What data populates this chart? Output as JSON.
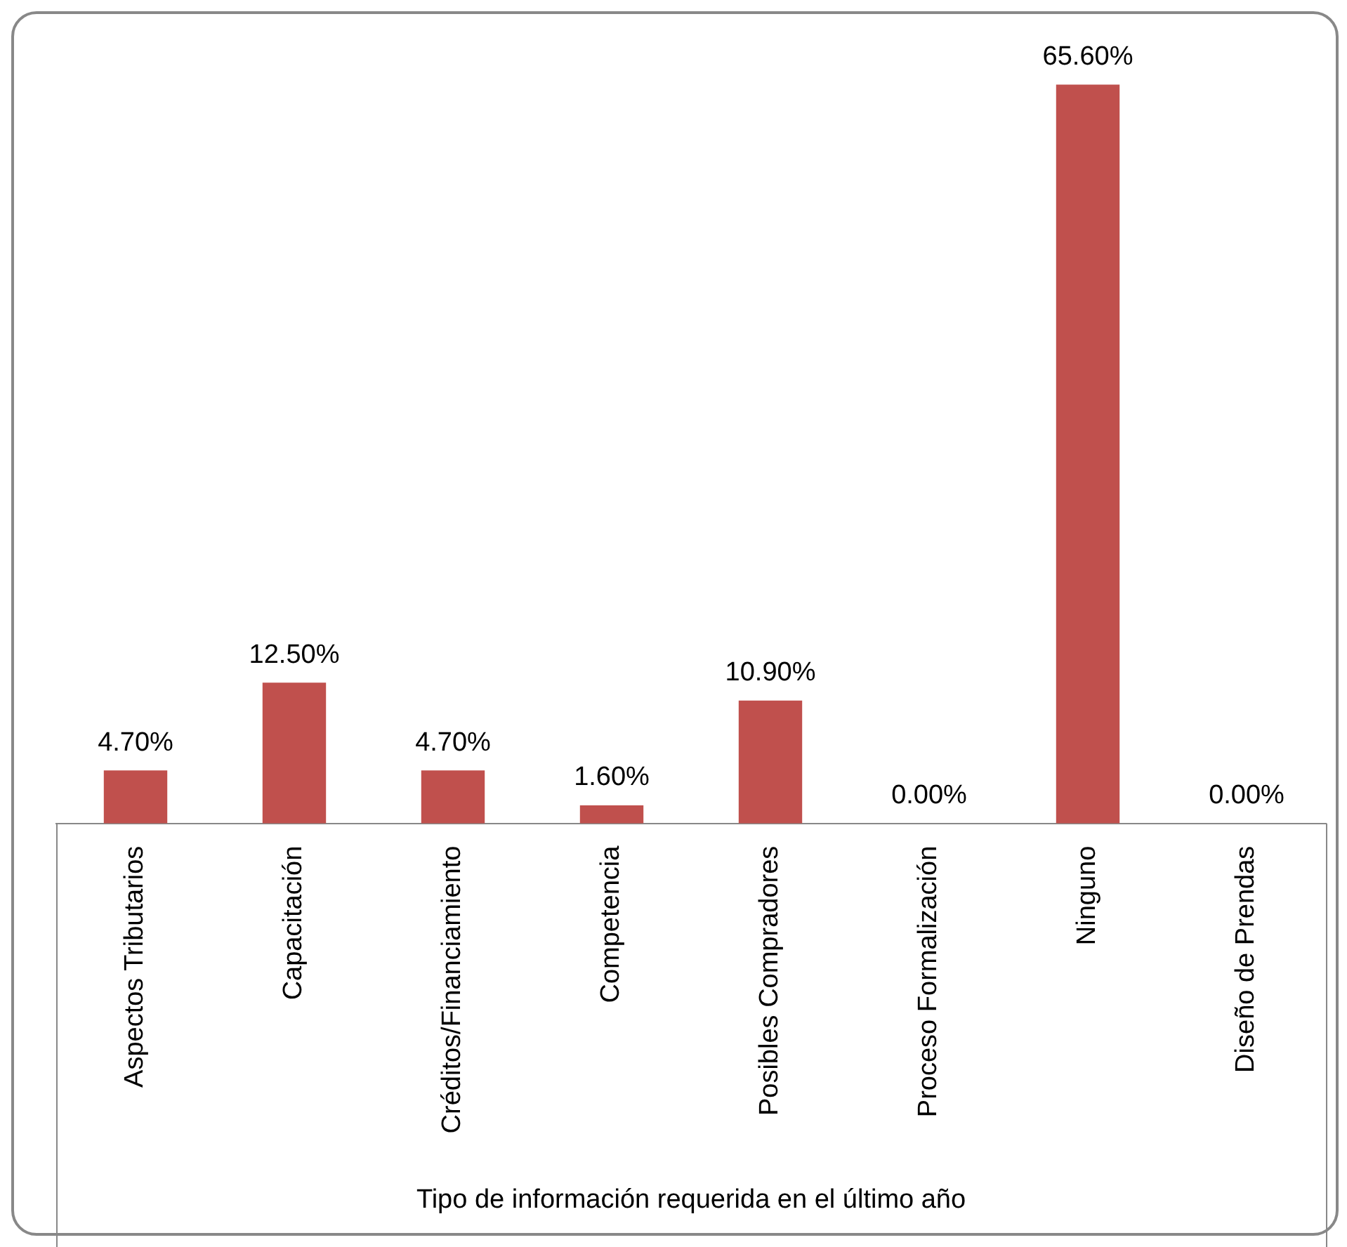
{
  "chart_data": {
    "type": "bar",
    "xlabel": "Tipo de información requerida en el último año",
    "categories": [
      "Aspectos Tributarios",
      "Capacitación",
      "Créditos/Financiamiento",
      "Competencia",
      "Posibles Compradores",
      "Proceso Formalización",
      "Ninguno",
      "Diseño de Prendas"
    ],
    "values": [
      4.7,
      12.5,
      4.7,
      1.6,
      10.9,
      0,
      65.6,
      0
    ],
    "value_labels": [
      "4.70%",
      "12.50%",
      "4.70%",
      "1.60%",
      "10.90%",
      "0.00%",
      "65.60%",
      "0.00%"
    ],
    "color": "#c0504d",
    "grid": false,
    "legend": false
  }
}
